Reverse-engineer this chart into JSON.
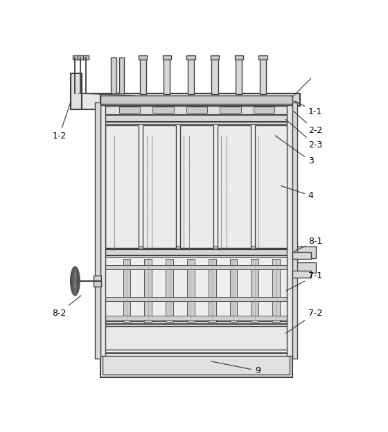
{
  "background_color": "#ffffff",
  "lc": "#404040",
  "lc2": "#606060",
  "fill_body": "#f0f0f0",
  "fill_gray": "#d8d8d8",
  "fill_light": "#e8e8e8",
  "fill_dot": "#b0b0b0",
  "figsize": [
    5.6,
    6.24
  ],
  "dpi": 100,
  "label_fs": 9
}
